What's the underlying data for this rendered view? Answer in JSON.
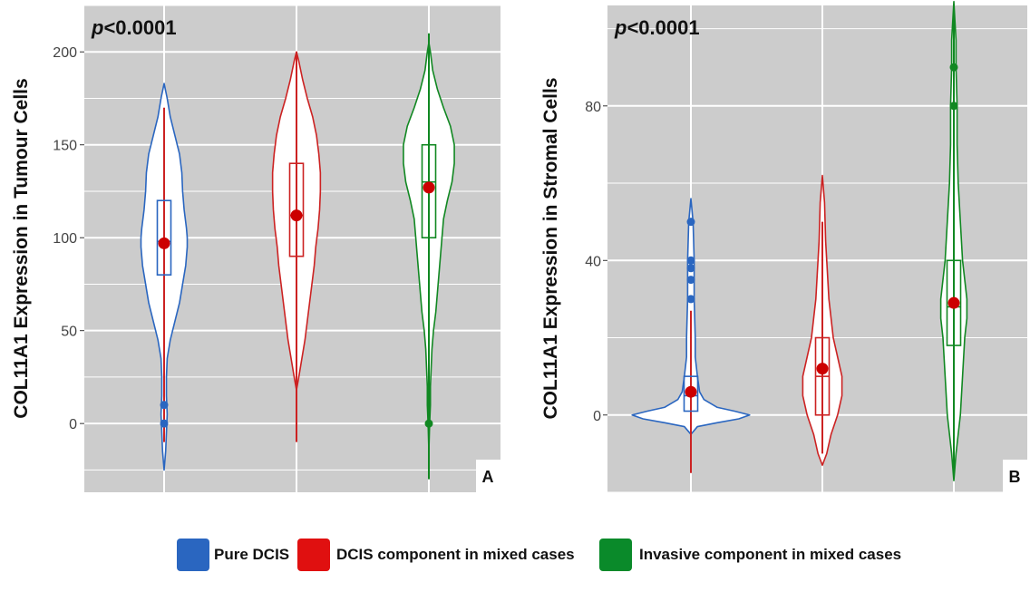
{
  "colors": {
    "panel_bg": "#cccccc",
    "grid": "#ffffff",
    "violin_fill": "#ffffff",
    "mean_dot": "#cc0000",
    "blue": "#2a66c0",
    "red": "#cc2222",
    "green": "#118822"
  },
  "legend": {
    "items": [
      {
        "label": "Pure DCIS",
        "color": "#2a66c0"
      },
      {
        "label": "DCIS component in mixed cases",
        "color": "#e01010"
      },
      {
        "label": "Invasive component in mixed cases",
        "color": "#0a8a2a"
      }
    ]
  },
  "chart_data": [
    {
      "type": "violin",
      "panel_label": "A",
      "annotation": "p<0.0001",
      "annotation_italic": "p",
      "annotation_rest": "<0.0001",
      "ylabel": "COL11A1 Expression in Tumour Cells",
      "xlabel": "",
      "ylim": [
        -37,
        225
      ],
      "yticks": [
        0,
        50,
        100,
        150,
        200
      ],
      "grid": true,
      "groups": [
        {
          "name": "Pure DCIS",
          "color": "#2a66c0",
          "violin": [
            [
              -25,
              0
            ],
            [
              -15,
              2
            ],
            [
              -5,
              3
            ],
            [
              5,
              4
            ],
            [
              15,
              3
            ],
            [
              25,
              3
            ],
            [
              35,
              4
            ],
            [
              45,
              8
            ],
            [
              55,
              14
            ],
            [
              65,
              20
            ],
            [
              75,
              24
            ],
            [
              85,
              28
            ],
            [
              95,
              30
            ],
            [
              100,
              30
            ],
            [
              105,
              29
            ],
            [
              115,
              26
            ],
            [
              125,
              24
            ],
            [
              135,
              23
            ],
            [
              145,
              20
            ],
            [
              155,
              14
            ],
            [
              165,
              8
            ],
            [
              175,
              4
            ],
            [
              183,
              0
            ]
          ],
          "whisker": [
            -10,
            170
          ],
          "q1": 80,
          "median": 98,
          "q3": 120,
          "mean": 97,
          "outliers": [
            0,
            10
          ]
        },
        {
          "name": "DCIS component in mixed cases",
          "color": "#cc2222",
          "violin": [
            [
              18,
              0
            ],
            [
              25,
              3
            ],
            [
              35,
              7
            ],
            [
              45,
              11
            ],
            [
              55,
              14
            ],
            [
              65,
              17
            ],
            [
              75,
              20
            ],
            [
              85,
              23
            ],
            [
              95,
              25
            ],
            [
              105,
              28
            ],
            [
              115,
              30
            ],
            [
              125,
              31
            ],
            [
              135,
              31
            ],
            [
              145,
              29
            ],
            [
              155,
              26
            ],
            [
              165,
              21
            ],
            [
              175,
              14
            ],
            [
              185,
              8
            ],
            [
              195,
              3
            ],
            [
              200,
              0
            ]
          ],
          "whisker": [
            -10,
            200
          ],
          "q1": 90,
          "median": 112,
          "q3": 140,
          "mean": 112,
          "outliers": []
        },
        {
          "name": "Invasive component in mixed cases",
          "color": "#118822",
          "violin": [
            [
              -15,
              0
            ],
            [
              0,
              1
            ],
            [
              10,
              2
            ],
            [
              20,
              2
            ],
            [
              30,
              3
            ],
            [
              40,
              4
            ],
            [
              50,
              6
            ],
            [
              60,
              9
            ],
            [
              70,
              11
            ],
            [
              80,
              13
            ],
            [
              90,
              15
            ],
            [
              100,
              17
            ],
            [
              110,
              19
            ],
            [
              120,
              24
            ],
            [
              130,
              30
            ],
            [
              140,
              33
            ],
            [
              150,
              33
            ],
            [
              160,
              28
            ],
            [
              170,
              19
            ],
            [
              180,
              11
            ],
            [
              190,
              5
            ],
            [
              200,
              2
            ],
            [
              205,
              0
            ]
          ],
          "whisker": [
            -30,
            210
          ],
          "q1": 100,
          "median": 130,
          "q3": 150,
          "mean": 127,
          "outliers": [
            0
          ]
        }
      ]
    },
    {
      "type": "violin",
      "panel_label": "B",
      "annotation": "p<0.0001",
      "annotation_italic": "p",
      "annotation_rest": "<0.0001",
      "ylabel": "COL11A1 Expression in Stromal Cells",
      "xlabel": "",
      "ylim": [
        -20,
        106
      ],
      "yticks": [
        0,
        40,
        80
      ],
      "grid": true,
      "groups": [
        {
          "name": "Pure DCIS",
          "color": "#2a66c0",
          "violin": [
            [
              -5,
              0
            ],
            [
              -3,
              3
            ],
            [
              -2,
              12
            ],
            [
              -1,
              22
            ],
            [
              0,
              27
            ],
            [
              1,
              20
            ],
            [
              2,
              12
            ],
            [
              4,
              6
            ],
            [
              6,
              4
            ],
            [
              10,
              3
            ],
            [
              15,
              2
            ],
            [
              20,
              2
            ],
            [
              30,
              1.5
            ],
            [
              40,
              1.5
            ],
            [
              50,
              1
            ],
            [
              56,
              0
            ]
          ],
          "whisker": [
            -15,
            27
          ],
          "q1": 1,
          "median": 5,
          "q3": 10,
          "mean": 6,
          "outliers": [
            30,
            35,
            38,
            40,
            50
          ]
        },
        {
          "name": "DCIS component in mixed cases",
          "color": "#cc2222",
          "violin": [
            [
              -13,
              0
            ],
            [
              -10,
              2
            ],
            [
              -5,
              4
            ],
            [
              0,
              7
            ],
            [
              5,
              9
            ],
            [
              10,
              9
            ],
            [
              15,
              7
            ],
            [
              20,
              5
            ],
            [
              25,
              4
            ],
            [
              30,
              3
            ],
            [
              35,
              2.5
            ],
            [
              45,
              1.5
            ],
            [
              55,
              1
            ],
            [
              62,
              0
            ]
          ],
          "whisker": [
            -10,
            50
          ],
          "q1": 0,
          "median": 10,
          "q3": 20,
          "mean": 12,
          "outliers": []
        },
        {
          "name": "Invasive component in mixed cases",
          "color": "#118822",
          "violin": [
            [
              -17,
              0
            ],
            [
              -10,
              1
            ],
            [
              -5,
              2
            ],
            [
              0,
              3
            ],
            [
              10,
              4
            ],
            [
              20,
              5
            ],
            [
              25,
              6
            ],
            [
              30,
              6
            ],
            [
              35,
              5
            ],
            [
              40,
              4
            ],
            [
              50,
              3
            ],
            [
              60,
              2
            ],
            [
              70,
              1.5
            ],
            [
              80,
              1.5
            ],
            [
              90,
              1
            ],
            [
              97,
              1
            ],
            [
              107,
              0
            ]
          ],
          "whisker": [
            -15,
            106
          ],
          "q1": 18,
          "median": 28,
          "q3": 40,
          "mean": 29,
          "outliers": [
            80,
            90
          ]
        }
      ]
    }
  ]
}
